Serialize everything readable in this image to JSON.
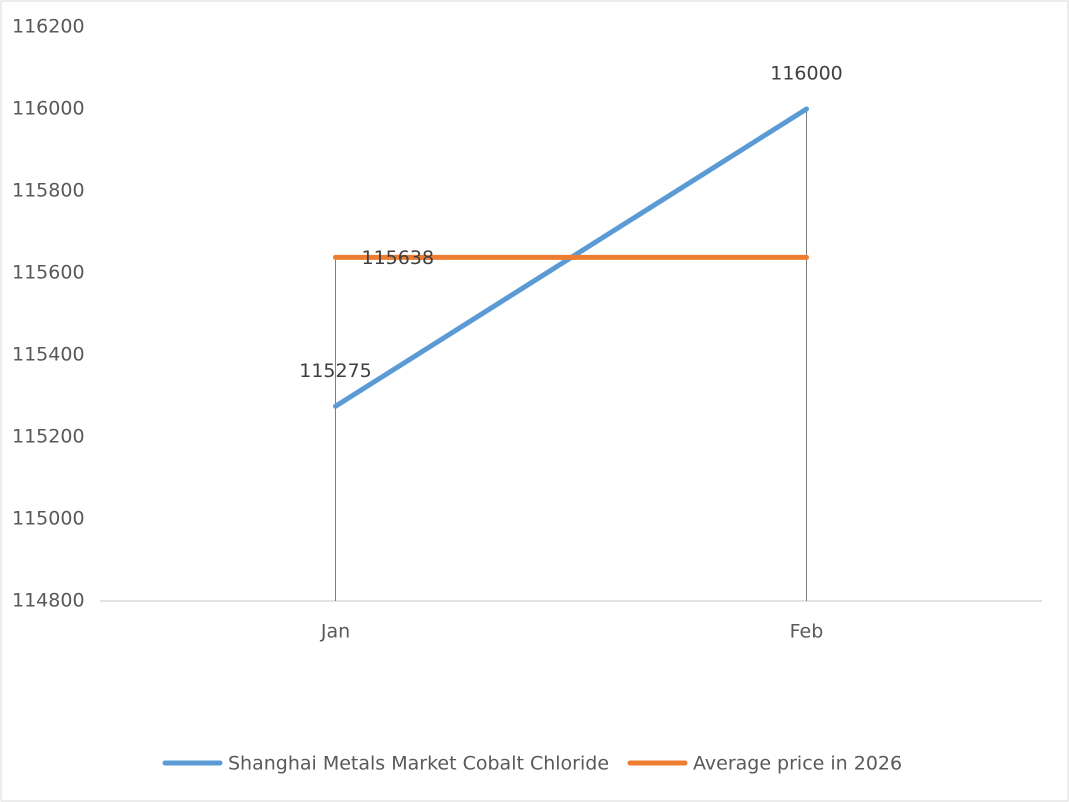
{
  "chart_data": {
    "type": "line",
    "categories": [
      "Jan",
      "Feb"
    ],
    "series": [
      {
        "name": "Shanghai Metals Market Cobalt Chloride",
        "color": "#5b9bd5",
        "values": [
          115275,
          116000
        ],
        "data_labels": [
          true,
          true
        ]
      },
      {
        "name": "Average price in 2026",
        "color": "#ed7d31",
        "values": [
          115638,
          115638
        ],
        "data_labels": [
          true,
          false
        ]
      }
    ],
    "ylim": [
      114800,
      116200
    ],
    "yticks": [
      114800,
      115000,
      115200,
      115400,
      115600,
      115800,
      116000,
      116200
    ],
    "grid": false,
    "drop_lines": true,
    "legend": "bottom"
  }
}
